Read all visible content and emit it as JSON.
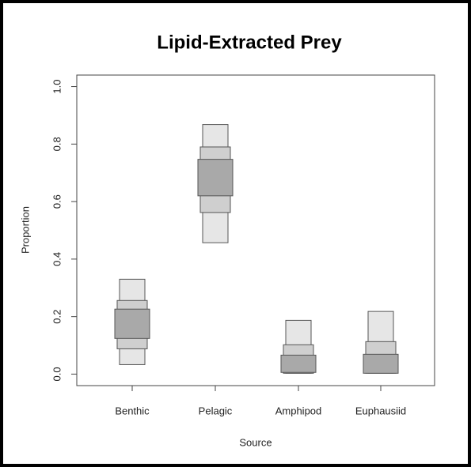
{
  "chart_data": {
    "type": "box",
    "title": "Lipid-Extracted Prey",
    "x_label": "Source",
    "y_label": "Proportion",
    "categories": [
      "Benthic",
      "Pelagic",
      "Amphipod",
      "Euphausiid"
    ],
    "series": [
      {
        "color": "#e6e6e6",
        "lower": [
          0.033,
          0.457,
          0.003,
          0.003
        ],
        "upper": [
          0.33,
          0.868,
          0.187,
          0.218
        ]
      },
      {
        "color": "#cfcfcf",
        "lower": [
          0.088,
          0.562,
          0.003,
          0.003
        ],
        "upper": [
          0.256,
          0.79,
          0.102,
          0.113
        ]
      },
      {
        "color": "#a9a9a9",
        "lower": [
          0.124,
          0.62,
          0.006,
          0.003
        ],
        "upper": [
          0.226,
          0.747,
          0.066,
          0.069
        ]
      }
    ],
    "ylim": [
      -0.04,
      1.04
    ],
    "yticks": [
      {
        "value": 0,
        "label": "0.0"
      },
      0.2,
      0.4,
      0.6,
      0.8,
      {
        "value": 1,
        "label": "1.0"
      }
    ]
  }
}
